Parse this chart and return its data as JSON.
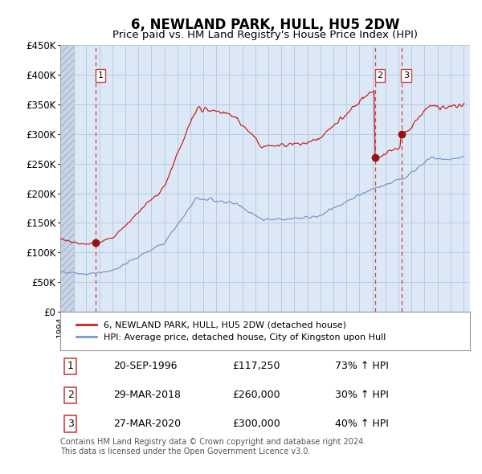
{
  "title": "6, NEWLAND PARK, HULL, HU5 2DW",
  "subtitle": "Price paid vs. HM Land Registry's House Price Index (HPI)",
  "ylim": [
    0,
    450000
  ],
  "yticks": [
    0,
    50000,
    100000,
    150000,
    200000,
    250000,
    300000,
    350000,
    400000,
    450000
  ],
  "ytick_labels": [
    "£0",
    "£50K",
    "£100K",
    "£150K",
    "£200K",
    "£250K",
    "£300K",
    "£350K",
    "£400K",
    "£450K"
  ],
  "bg_color": "#dce8f5",
  "hatch_color": "#c8d4e8",
  "grid_color": "#b8cce4",
  "red_line_color": "#cc2222",
  "blue_line_color": "#7799cc",
  "sale_marker_color": "#991111",
  "dashed_line_color": "#cc4444",
  "sale_points": [
    {
      "date_num": 1996.72,
      "price": 117250,
      "label": "1"
    },
    {
      "date_num": 2018.22,
      "price": 260000,
      "label": "2"
    },
    {
      "date_num": 2020.24,
      "price": 300000,
      "label": "3"
    }
  ],
  "table_data": [
    [
      "1",
      "20-SEP-1996",
      "£117,250",
      "73% ↑ HPI"
    ],
    [
      "2",
      "29-MAR-2018",
      "£260,000",
      "30% ↑ HPI"
    ],
    [
      "3",
      "27-MAR-2020",
      "£300,000",
      "40% ↑ HPI"
    ]
  ],
  "legend_labels": [
    "6, NEWLAND PARK, HULL, HU5 2DW (detached house)",
    "HPI: Average price, detached house, City of Kingston upon Hull"
  ],
  "footer": "Contains HM Land Registry data © Crown copyright and database right 2024.\nThis data is licensed under the Open Government Licence v3.0.",
  "xlim_left": 1994.0,
  "xlim_right": 2025.5
}
